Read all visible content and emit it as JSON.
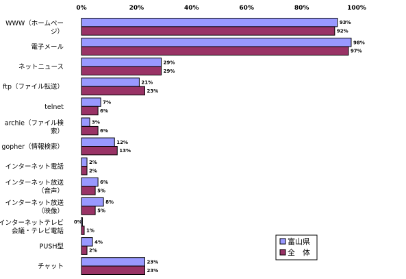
{
  "chart_data": {
    "type": "bar",
    "orientation": "horizontal",
    "title": "",
    "xlabel": "",
    "ylabel": "",
    "xlim": [
      0,
      100
    ],
    "x_ticks": [
      "0%",
      "20%",
      "40%",
      "60%",
      "80%",
      "100%"
    ],
    "x_tick_values": [
      0,
      20,
      40,
      60,
      80,
      100
    ],
    "grid": false,
    "legend_position": "bottom-right",
    "categories": [
      [
        "WWW（ホームペー",
        "ジ）"
      ],
      [
        "電子メール"
      ],
      [
        "ネットニュース"
      ],
      [
        "ftp（ファイル転送）"
      ],
      [
        "telnet"
      ],
      [
        "archie（ファイル検",
        "索）"
      ],
      [
        "gopher（情報検索）"
      ],
      [
        "インターネット電話"
      ],
      [
        "インターネット放送",
        "（音声）"
      ],
      [
        "インターネット放送",
        "（映像）"
      ],
      [
        "インターネットテレビ",
        "会議・テレビ電話"
      ],
      [
        "PUSH型"
      ],
      [
        "チャット"
      ]
    ],
    "series": [
      {
        "name": "富山県",
        "color": "#9999ff",
        "values": [
          93,
          98,
          29,
          21,
          7,
          3,
          12,
          2,
          6,
          8,
          0,
          4,
          23
        ],
        "labels": [
          "93%",
          "98%",
          "29%",
          "21%",
          "7%",
          "3%",
          "12%",
          "2%",
          "6%",
          "8%",
          "0%",
          "4%",
          "23%"
        ]
      },
      {
        "name": "全　体",
        "color": "#993366",
        "values": [
          92,
          97,
          29,
          23,
          6,
          6,
          13,
          2,
          5,
          5,
          1,
          2,
          23
        ],
        "labels": [
          "92%",
          "97%",
          "29%",
          "23%",
          "6%",
          "6%",
          "13%",
          "2%",
          "5%",
          "5%",
          "1%",
          "2%",
          "23%"
        ]
      }
    ]
  }
}
